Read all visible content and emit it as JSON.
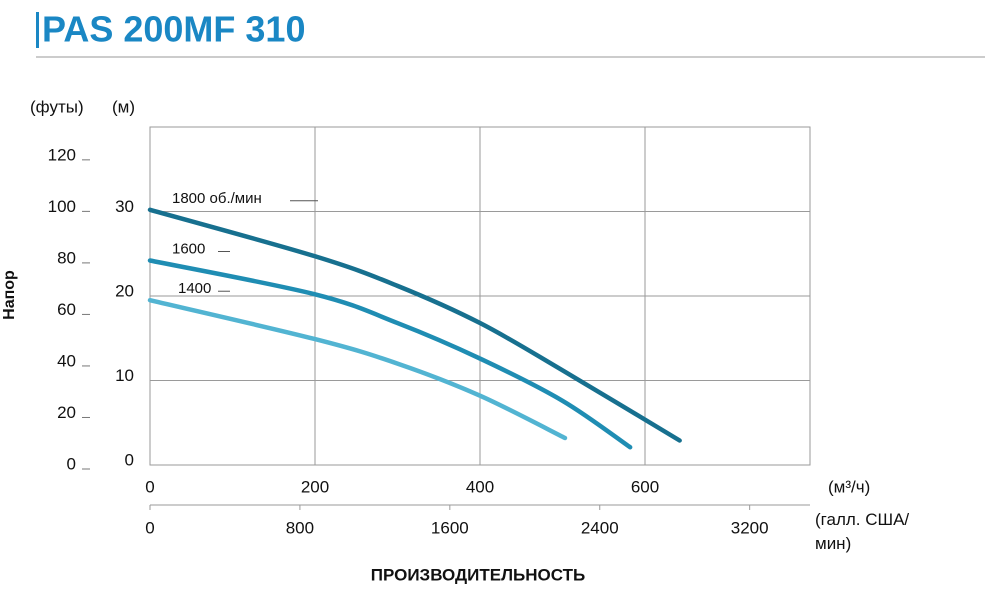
{
  "chart_data": {
    "type": "line",
    "title": "PAS 200MF 310",
    "y_label": "Напор",
    "y_unit": "(м)",
    "y2_unit": "(футы)",
    "x_unit": "(м³/ч)",
    "x2_unit": "(галл. США/мин)",
    "x_label": "ПРОИЗВОДИТЕЛЬНОСТЬ",
    "xlim": [
      0,
      800
    ],
    "xticks": [
      0,
      200,
      400,
      600
    ],
    "x2lim": [
      0,
      3522
    ],
    "x2ticks": [
      0,
      800,
      1600,
      2400,
      3200
    ],
    "ylim": [
      0,
      40
    ],
    "yticks": [
      0,
      10,
      20,
      30
    ],
    "y2lim": [
      0,
      131.2
    ],
    "y2ticks": [
      0,
      20,
      40,
      60,
      80,
      100,
      120
    ],
    "grid": true,
    "series": [
      {
        "name": "1800 об./мин",
        "color": "#17708f",
        "x": [
          0,
          200,
          300,
          400,
          500,
          642
        ],
        "values": [
          30.2,
          24.7,
          21.2,
          16.8,
          11.2,
          2.9
        ]
      },
      {
        "name": "1600",
        "color": "#1f8db3",
        "x": [
          0,
          200,
          300,
          400,
          500,
          582
        ],
        "values": [
          24.2,
          20.2,
          16.8,
          12.6,
          7.6,
          2.1
        ]
      },
      {
        "name": "1400",
        "color": "#52b4d2",
        "x": [
          0,
          200,
          300,
          400,
          503
        ],
        "values": [
          19.5,
          14.9,
          12.0,
          8.2,
          3.2
        ]
      }
    ]
  }
}
